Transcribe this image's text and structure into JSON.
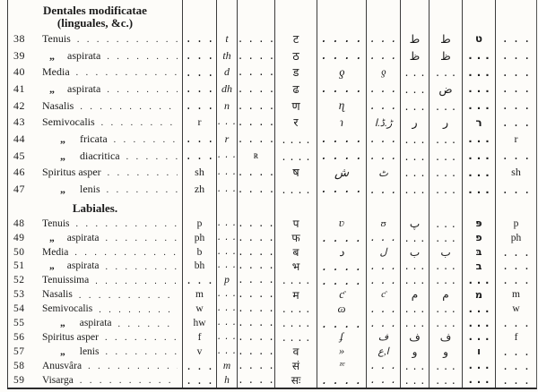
{
  "page": {
    "background": "#fdfcf9",
    "ink": "#1b1b1b",
    "rule_color": "#3c3c3c"
  },
  "table": {
    "column_scripts": [
      "latin-roman",
      "latin-italic",
      "latin-smallcaps",
      "devanagari",
      "cursive-script-1",
      "cursive-script-2",
      "arabic",
      "persian",
      "hebrew",
      "latin-final"
    ],
    "sections": [
      {
        "header_lines": [
          "Dentales modificatae",
          "(linguales, &c.)"
        ],
        "rows": [
          {
            "num": "38",
            "label": "Tenuis",
            "ditto": "",
            "indent": 0,
            "cells": [
              "...",
              "t",
              "....",
              "ट",
              "....",
              "...",
              "ط",
              "ط",
              "ט",
              "..."
            ]
          },
          {
            "num": "39",
            "label": "aspirata",
            "ditto": "„",
            "indent": 1,
            "cells": [
              "...",
              "th",
              "....",
              "ठ",
              "....",
              "...",
              "ظ",
              "ظ",
              "...",
              "..."
            ]
          },
          {
            "num": "40",
            "label": "Media",
            "ditto": "",
            "indent": 0,
            "cells": [
              "...",
              "d",
              "....",
              "ड",
              "ƍ",
              "ƍ",
              "...",
              "...",
              "...",
              "..."
            ]
          },
          {
            "num": "41",
            "label": "aspirata",
            "ditto": "„",
            "indent": 1,
            "cells": [
              "...",
              "dh",
              "....",
              "ढ",
              "....",
              "...",
              "...",
              "ض",
              "...",
              "..."
            ]
          },
          {
            "num": "42",
            "label": "Nasalis",
            "ditto": "",
            "indent": 0,
            "cells": [
              "...",
              "n",
              "....",
              "ण",
              "ɳ",
              "...",
              "...",
              "...",
              "...",
              "..."
            ]
          },
          {
            "num": "43",
            "label": "Semivocalis",
            "ditto": "",
            "indent": 0,
            "cells": [
              "r",
              "...",
              "....",
              "र",
              "ɿ",
              "ڑ.ڈ.ا",
              "ر",
              "ر",
              "ר",
              "..."
            ]
          },
          {
            "num": "44",
            "label": "fricata",
            "ditto": "„",
            "indent": 2,
            "cells": [
              "...",
              "r",
              "....",
              "....",
              "....",
              "...",
              "...",
              "...",
              "...",
              "r"
            ]
          },
          {
            "num": "45",
            "label": "diacritica",
            "ditto": "„",
            "indent": 2,
            "cells": [
              "...",
              "...",
              "ʀ",
              "....",
              "....",
              "...",
              "...",
              "...",
              "...",
              "..."
            ]
          },
          {
            "num": "46",
            "label": "Spiritus asper",
            "ditto": "",
            "indent": 0,
            "cells": [
              "sh",
              "...",
              "....",
              "ष",
              "ش",
              "ٹ",
              "...",
              "...",
              "...",
              "sh"
            ]
          },
          {
            "num": "47",
            "label": "lenis",
            "ditto": "„",
            "indent": 2,
            "cells": [
              "zh",
              "...",
              "....",
              "....",
              "....",
              "...",
              "...",
              "...",
              "...",
              "..."
            ]
          }
        ]
      },
      {
        "header_lines": [
          "Labiales."
        ],
        "rows": [
          {
            "num": "48",
            "label": "Tenuis",
            "ditto": "",
            "indent": 0,
            "cells": [
              "p",
              "...",
              "....",
              "प",
              "ʋ",
              "ʊ",
              "پ",
              "...",
              "פּ",
              "p"
            ]
          },
          {
            "num": "49",
            "label": "aspirata",
            "ditto": "„",
            "indent": 1,
            "cells": [
              "ph",
              "...",
              "....",
              "फ",
              "....",
              "...",
              "...",
              "...",
              "פ",
              "ph"
            ]
          },
          {
            "num": "50",
            "label": "Media",
            "ditto": "",
            "indent": 0,
            "cells": [
              "b",
              "...",
              "....",
              "ब",
              "د",
              "ل",
              "ب",
              "ب",
              "בּ",
              "..."
            ]
          },
          {
            "num": "51",
            "label": "aspirata",
            "ditto": "„",
            "indent": 1,
            "cells": [
              "bh",
              "...",
              "....",
              "भ",
              "....",
              "...",
              "...",
              "...",
              "ב",
              "..."
            ]
          },
          {
            "num": "52",
            "label": "Tenuissima",
            "ditto": "",
            "indent": 0,
            "cells": [
              "...",
              "p",
              "....",
              "....",
              "....",
              "...",
              "...",
              "...",
              "...",
              "..."
            ]
          },
          {
            "num": "53",
            "label": "Nasalis",
            "ditto": "",
            "indent": 0,
            "cells": [
              "m",
              "...",
              "....",
              "म",
              "ƈ",
              "ƈ",
              "م",
              "م",
              "מ",
              "m"
            ]
          },
          {
            "num": "54",
            "label": "Semivocalis",
            "ditto": "",
            "indent": 0,
            "cells": [
              "w",
              "...",
              "....",
              "....",
              "ɷ",
              "...",
              "...",
              "...",
              "...",
              "w"
            ]
          },
          {
            "num": "55",
            "label": "aspirata",
            "ditto": "„",
            "indent": 2,
            "cells": [
              "hw",
              "...",
              "....",
              "....",
              "....",
              "...",
              "...",
              "...",
              "...",
              "..."
            ]
          },
          {
            "num": "56",
            "label": "Spiritus asper",
            "ditto": "",
            "indent": 0,
            "cells": [
              "f",
              "...",
              "....",
              "....",
              "ʄ",
              "ف",
              "ف",
              "ف",
              "...",
              "f"
            ]
          },
          {
            "num": "57",
            "label": "lenis",
            "ditto": "„",
            "indent": 2,
            "cells": [
              "v",
              "...",
              "....",
              "व",
              "»",
              "ا,ع",
              "و",
              "و",
              "ו",
              "..."
            ]
          },
          {
            "num": "58",
            "label": "Anusvâra",
            "ditto": "",
            "indent": 0,
            "cells": [
              "...",
              "m",
              "....",
              "सं",
              "ᶻᵉ",
              "...",
              "...",
              "...",
              "...",
              "..."
            ]
          },
          {
            "num": "59",
            "label": "Visarga",
            "ditto": "",
            "indent": 0,
            "cells": [
              "...",
              "h",
              "....",
              "सः",
              "....",
              "...",
              "...",
              "...",
              "...",
              "..."
            ]
          }
        ]
      }
    ]
  }
}
